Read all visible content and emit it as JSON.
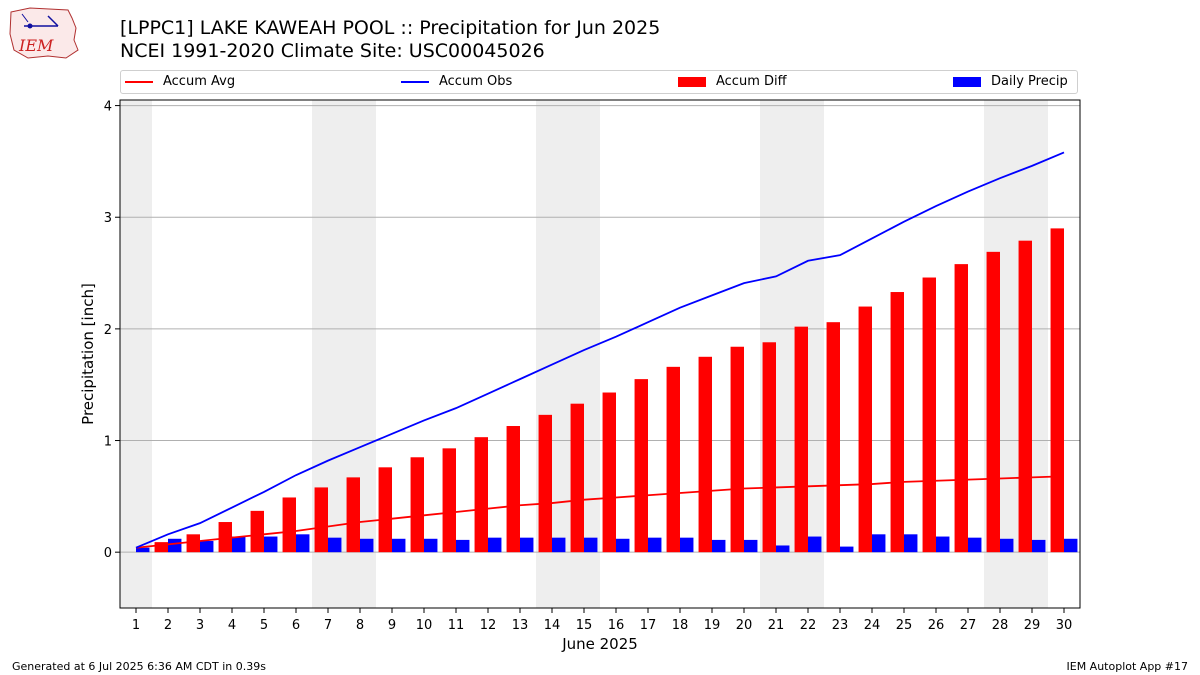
{
  "header": {
    "title_line1": "[LPPC1] LAKE KAWEAH POOL :: Precipitation for Jun 2025",
    "title_line2": "NCEI 1991-2020 Climate Site: USC00045026",
    "logo_text": "IEM"
  },
  "footer": {
    "generated": "Generated at 6 Jul 2025 6:36 AM CDT in 0.39s",
    "app": "IEM Autoplot App #17"
  },
  "colors": {
    "avg": "#ff0000",
    "obs": "#0000ff",
    "diff": "#ff0000",
    "daily": "#0000ff",
    "weekend_band": "#eeeeee",
    "grid": "#b0b0b0"
  },
  "chart_data": {
    "type": "bar",
    "xlabel": "June 2025",
    "ylabel": "Precipitation [inch]",
    "xlim": [
      0.5,
      30.5
    ],
    "ylim": [
      -0.5,
      4.05
    ],
    "yticks": [
      0,
      1,
      2,
      3,
      4
    ],
    "grid": true,
    "legend_placement": "top",
    "categories": [
      "1",
      "2",
      "3",
      "4",
      "5",
      "6",
      "7",
      "8",
      "9",
      "10",
      "11",
      "12",
      "13",
      "14",
      "15",
      "16",
      "17",
      "18",
      "19",
      "20",
      "21",
      "22",
      "23",
      "24",
      "25",
      "26",
      "27",
      "28",
      "29",
      "30"
    ],
    "shaded_days": [
      [
        0.5,
        1.5
      ],
      [
        6.5,
        8.5
      ],
      [
        13.5,
        15.5
      ],
      [
        20.5,
        22.5
      ],
      [
        27.5,
        29.5
      ]
    ],
    "series": [
      {
        "name": "Accum Avg",
        "kind": "line",
        "values": [
          0.04,
          0.07,
          0.1,
          0.13,
          0.16,
          0.19,
          0.23,
          0.27,
          0.3,
          0.33,
          0.36,
          0.39,
          0.42,
          0.44,
          0.47,
          0.49,
          0.51,
          0.53,
          0.55,
          0.57,
          0.58,
          0.59,
          0.6,
          0.61,
          0.63,
          0.64,
          0.65,
          0.66,
          0.67,
          0.68
        ]
      },
      {
        "name": "Accum Obs",
        "kind": "line",
        "values": [
          0.04,
          0.16,
          0.26,
          0.4,
          0.54,
          0.69,
          0.82,
          0.94,
          1.06,
          1.18,
          1.29,
          1.42,
          1.55,
          1.68,
          1.81,
          1.93,
          2.06,
          2.19,
          2.3,
          2.41,
          2.47,
          2.61,
          2.66,
          2.81,
          2.96,
          3.1,
          3.23,
          3.35,
          3.46,
          3.58
        ]
      },
      {
        "name": "Accum Diff",
        "kind": "bar",
        "values": [
          0.0,
          0.09,
          0.16,
          0.27,
          0.37,
          0.49,
          0.58,
          0.67,
          0.76,
          0.85,
          0.93,
          1.03,
          1.13,
          1.23,
          1.33,
          1.43,
          1.55,
          1.66,
          1.75,
          1.84,
          1.88,
          2.02,
          2.06,
          2.2,
          2.33,
          2.46,
          2.58,
          2.69,
          2.79,
          2.9
        ]
      },
      {
        "name": "Daily Precip",
        "kind": "bar",
        "values": [
          0.04,
          0.12,
          0.1,
          0.14,
          0.14,
          0.16,
          0.13,
          0.12,
          0.12,
          0.12,
          0.11,
          0.13,
          0.13,
          0.13,
          0.13,
          0.12,
          0.13,
          0.13,
          0.11,
          0.11,
          0.06,
          0.14,
          0.05,
          0.16,
          0.16,
          0.14,
          0.13,
          0.12,
          0.11,
          0.12
        ]
      }
    ]
  }
}
